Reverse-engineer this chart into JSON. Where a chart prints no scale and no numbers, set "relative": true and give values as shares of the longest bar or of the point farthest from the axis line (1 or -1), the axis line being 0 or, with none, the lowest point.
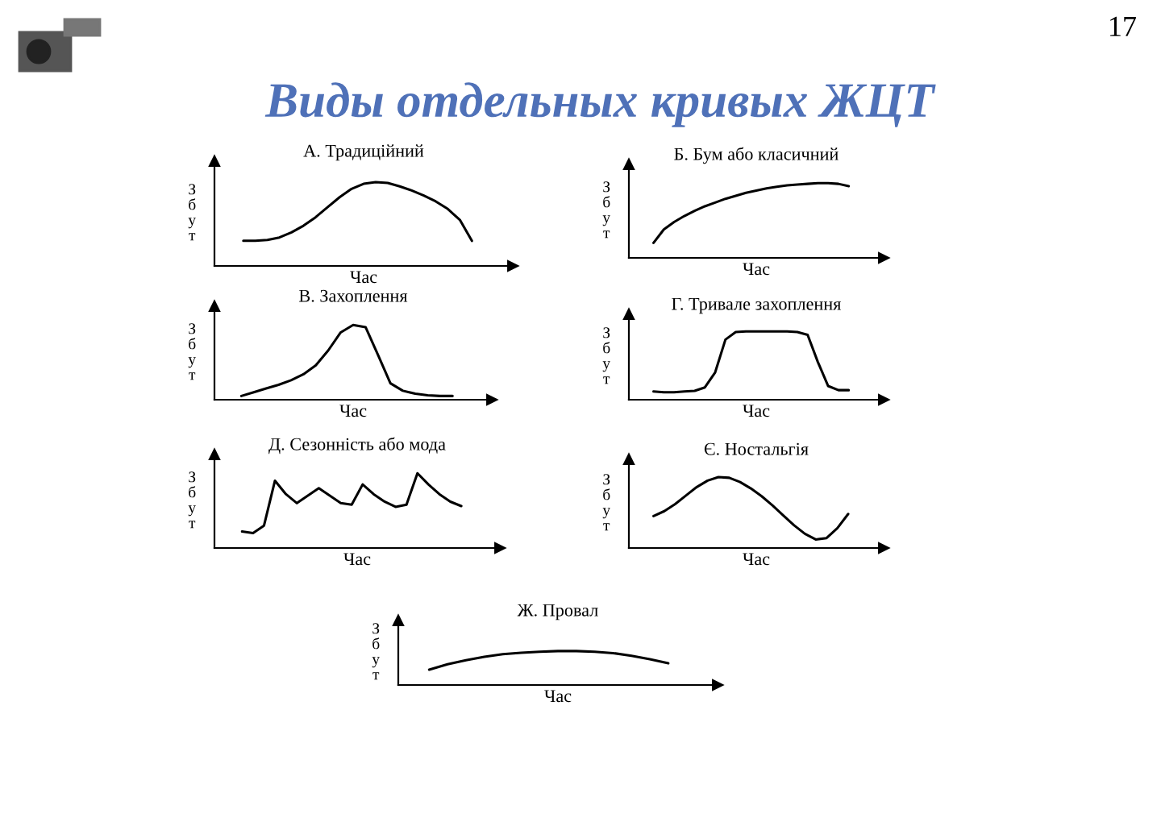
{
  "chart_data": [
    {
      "type": "line",
      "relative": true,
      "title": "А. Традиційний",
      "xlabel": "Час",
      "ylabel": "Збут",
      "categories": [
        null,
        null,
        null,
        null,
        null,
        null,
        null,
        null,
        null,
        null,
        null,
        null,
        null,
        null,
        null,
        null,
        null,
        null,
        null,
        null
      ],
      "series": [
        {
          "color": "#000000",
          "values": [
            0.3,
            0.3,
            0.31,
            0.34,
            0.4,
            0.48,
            0.58,
            0.7,
            0.82,
            0.92,
            0.98,
            1.0,
            0.99,
            0.95,
            0.9,
            0.84,
            0.77,
            0.68,
            0.55,
            0.3
          ]
        }
      ]
    },
    {
      "type": "line",
      "relative": true,
      "title": "Б. Бум або класичний",
      "xlabel": "Час",
      "ylabel": "Збут",
      "categories": [
        null,
        null,
        null,
        null,
        null,
        null,
        null,
        null,
        null,
        null,
        null,
        null,
        null,
        null,
        null,
        null,
        null,
        null,
        null,
        null
      ],
      "series": [
        {
          "color": "#000000",
          "values": [
            0.2,
            0.38,
            0.48,
            0.56,
            0.63,
            0.69,
            0.74,
            0.79,
            0.83,
            0.87,
            0.9,
            0.93,
            0.95,
            0.97,
            0.98,
            0.99,
            1.0,
            1.0,
            0.99,
            0.96
          ]
        }
      ]
    },
    {
      "type": "line",
      "relative": true,
      "title": "В. Захоплення",
      "xlabel": "Час",
      "ylabel": "Збут",
      "categories": [
        null,
        null,
        null,
        null,
        null,
        null,
        null,
        null,
        null,
        null,
        null,
        null,
        null,
        null,
        null,
        null,
        null,
        null
      ],
      "series": [
        {
          "color": "#000000",
          "values": [
            0.05,
            0.1,
            0.15,
            0.2,
            0.26,
            0.34,
            0.46,
            0.66,
            0.9,
            1.0,
            0.97,
            0.6,
            0.22,
            0.12,
            0.08,
            0.06,
            0.05,
            0.05
          ]
        }
      ]
    },
    {
      "type": "line",
      "relative": true,
      "title": "Г. Тривале захоплення",
      "xlabel": "Час",
      "ylabel": "Збут",
      "categories": [
        null,
        null,
        null,
        null,
        null,
        null,
        null,
        null,
        null,
        null,
        null,
        null,
        null,
        null,
        null,
        null,
        null,
        null,
        null,
        null
      ],
      "series": [
        {
          "color": "#000000",
          "values": [
            0.12,
            0.11,
            0.11,
            0.12,
            0.13,
            0.18,
            0.4,
            0.88,
            0.99,
            1.0,
            1.0,
            1.0,
            1.0,
            1.0,
            0.99,
            0.95,
            0.55,
            0.2,
            0.14,
            0.14
          ]
        }
      ]
    },
    {
      "type": "line",
      "relative": true,
      "title": "Д. Сезонність або мода",
      "xlabel": "Час",
      "ylabel": "Збут",
      "categories": [
        null,
        null,
        null,
        null,
        null,
        null,
        null,
        null,
        null,
        null,
        null,
        null,
        null,
        null,
        null,
        null,
        null,
        null,
        null,
        null,
        null
      ],
      "series": [
        {
          "color": "#000000",
          "values": [
            0.22,
            0.2,
            0.3,
            0.9,
            0.72,
            0.6,
            0.7,
            0.8,
            0.7,
            0.6,
            0.58,
            0.85,
            0.72,
            0.62,
            0.55,
            0.58,
            1.0,
            0.85,
            0.72,
            0.62,
            0.56
          ]
        }
      ]
    },
    {
      "type": "line",
      "relative": true,
      "title": "Є. Ностальгія",
      "xlabel": "Час",
      "ylabel": "Збут",
      "categories": [
        null,
        null,
        null,
        null,
        null,
        null,
        null,
        null,
        null,
        null,
        null,
        null,
        null,
        null,
        null,
        null,
        null,
        null,
        null
      ],
      "series": [
        {
          "color": "#000000",
          "values": [
            0.45,
            0.52,
            0.62,
            0.74,
            0.86,
            0.95,
            1.0,
            0.99,
            0.93,
            0.84,
            0.73,
            0.6,
            0.46,
            0.32,
            0.2,
            0.12,
            0.14,
            0.28,
            0.48
          ]
        }
      ]
    },
    {
      "type": "line",
      "relative": true,
      "title": "Ж. Провал",
      "xlabel": "Час",
      "ylabel": "Збут",
      "categories": [
        null,
        null,
        null,
        null,
        null,
        null,
        null,
        null,
        null,
        null,
        null,
        null,
        null,
        null
      ],
      "series": [
        {
          "color": "#000000",
          "values": [
            0.45,
            0.61,
            0.73,
            0.83,
            0.91,
            0.95,
            0.98,
            1.0,
            1.0,
            0.98,
            0.94,
            0.86,
            0.76,
            0.64
          ]
        }
      ]
    },
    {
      "type": "other",
      "title": "Виды отдельных кривых ЖЦТ",
      "annotations": [
        "17"
      ]
    }
  ]
}
